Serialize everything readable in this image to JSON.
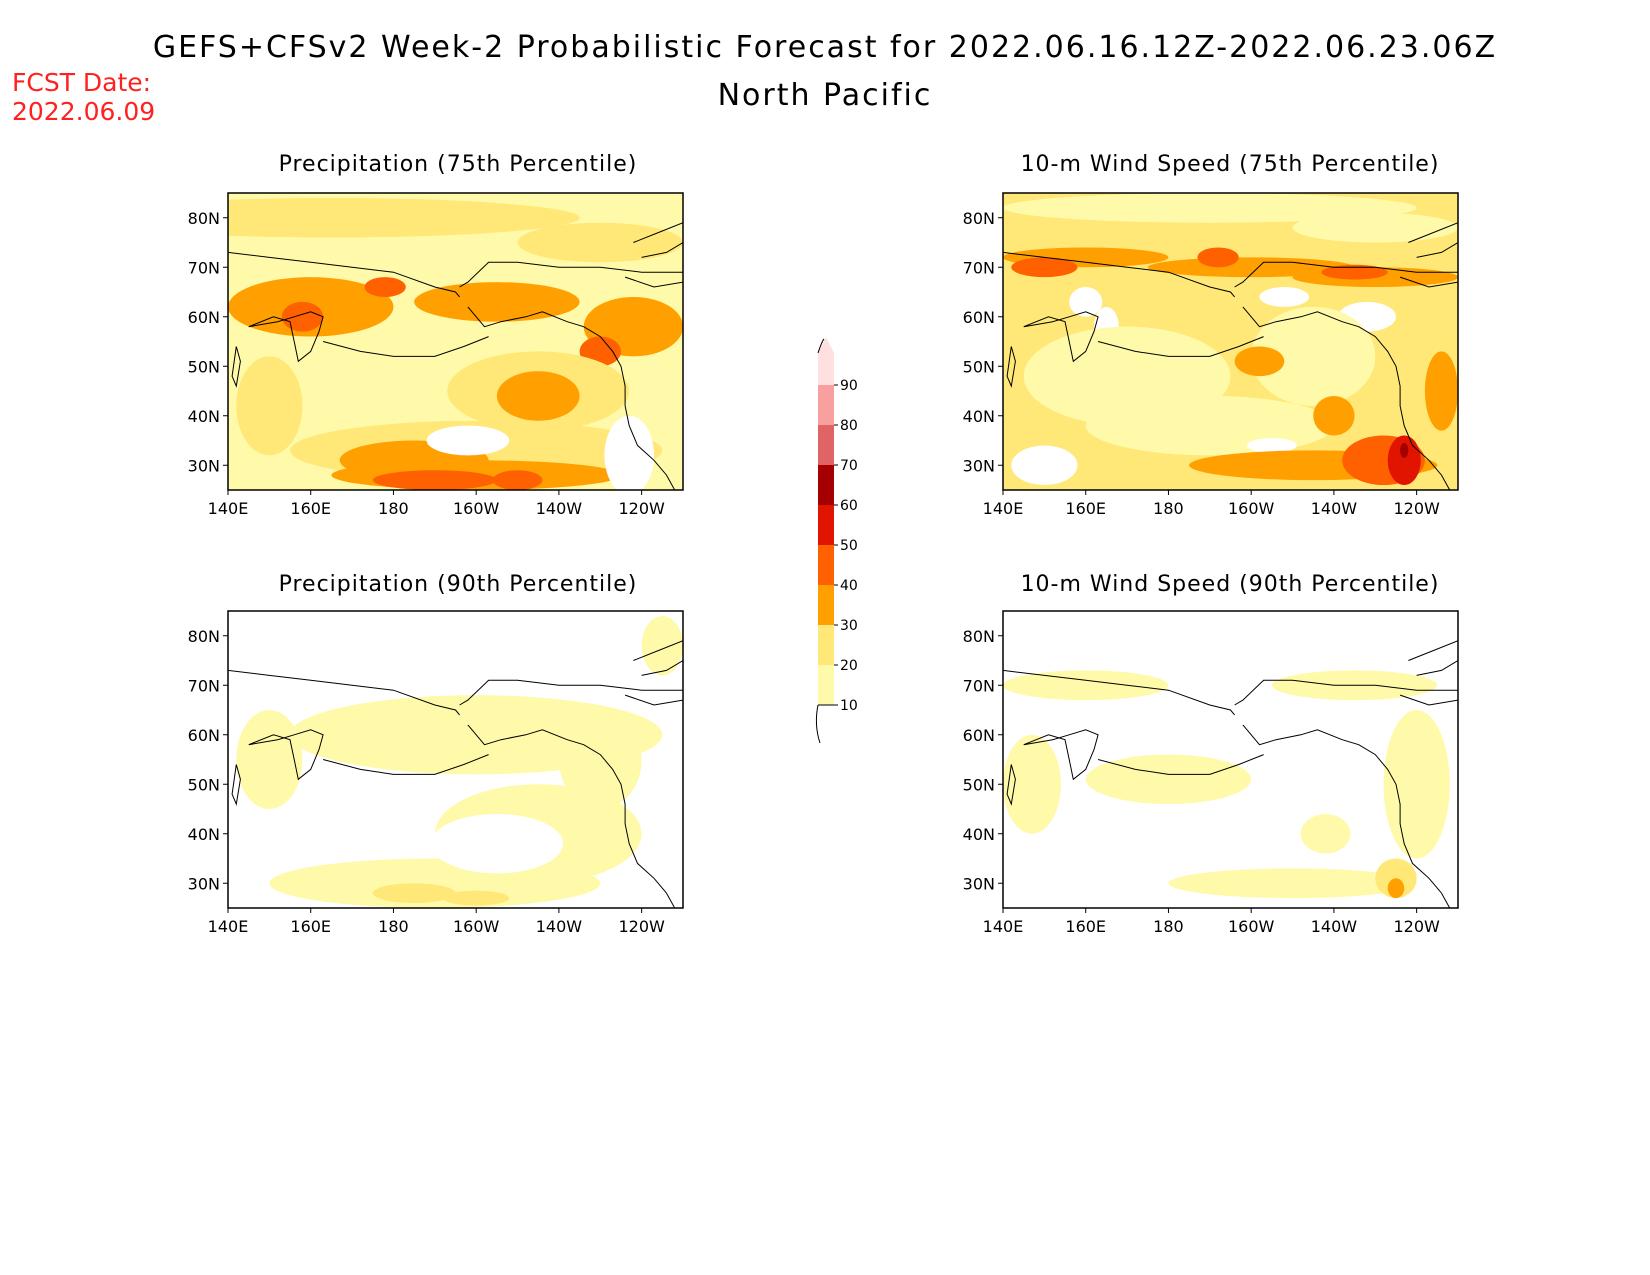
{
  "header": {
    "title": "GEFS+CFSv2 Week-2 Probabilistic Forecast for 2022.06.16.12Z-2022.06.23.06Z",
    "subtitle": "North Pacific",
    "fcst_label": "FCST Date:",
    "fcst_date": "2022.06.09"
  },
  "map_extent": {
    "lon_min": 140,
    "lon_max": 250,
    "lat_min": 25,
    "lat_max": 85
  },
  "panels": [
    {
      "id": "precip75",
      "title": "Precipitation (75th Percentile)"
    },
    {
      "id": "wind75",
      "title": "10-m Wind Speed (75th Percentile)"
    },
    {
      "id": "precip90",
      "title": "Precipitation (90th Percentile)"
    },
    {
      "id": "wind90",
      "title": "10-m Wind Speed (90th Percentile)"
    }
  ],
  "lat_ticks": [
    "30N",
    "40N",
    "50N",
    "60N",
    "70N",
    "80N"
  ],
  "lon_ticks": [
    "140E",
    "160E",
    "180",
    "160W",
    "140W",
    "120W"
  ],
  "colorbar": {
    "levels": [
      "10",
      "20",
      "30",
      "40",
      "50",
      "60",
      "70",
      "80",
      "90"
    ],
    "colors": [
      "#fffaaa",
      "#ffe878",
      "#ffa000",
      "#ff6000",
      "#e11400",
      "#a50000",
      "#e06464",
      "#f8a0a0",
      "#fee0e0"
    ]
  }
}
